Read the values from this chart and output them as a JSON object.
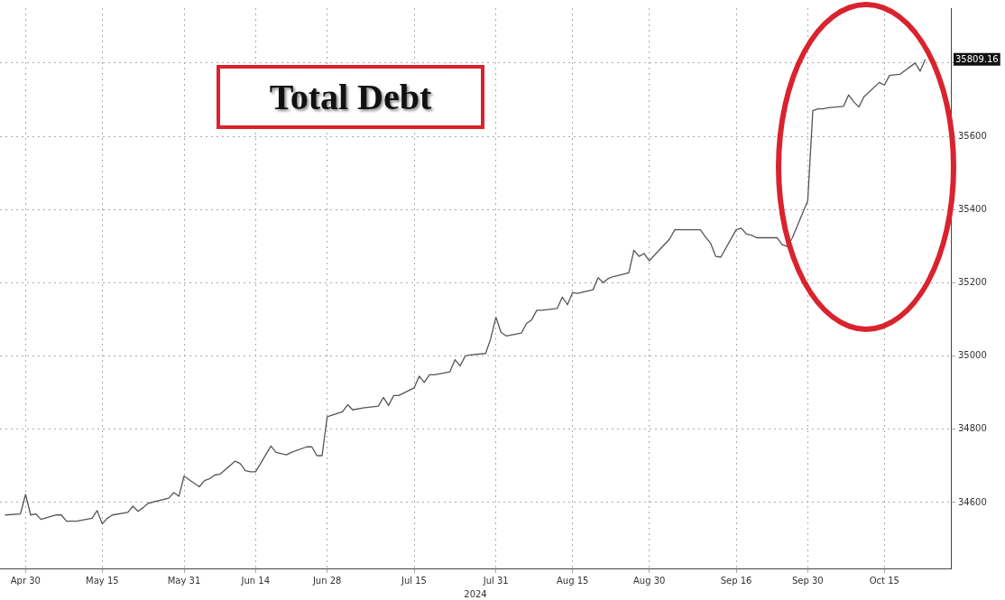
{
  "chart_data": {
    "type": "line",
    "title": "Total Debt",
    "xlabel": "2024",
    "x": [
      "2024-04-26",
      "2024-04-29",
      "2024-04-30",
      "2024-05-01",
      "2024-05-02",
      "2024-05-03",
      "2024-05-06",
      "2024-05-07",
      "2024-05-08",
      "2024-05-09",
      "2024-05-10",
      "2024-05-13",
      "2024-05-14",
      "2024-05-15",
      "2024-05-16",
      "2024-05-17",
      "2024-05-20",
      "2024-05-21",
      "2024-05-22",
      "2024-05-23",
      "2024-05-24",
      "2024-05-28",
      "2024-05-29",
      "2024-05-30",
      "2024-05-31",
      "2024-06-03",
      "2024-06-04",
      "2024-06-05",
      "2024-06-06",
      "2024-06-07",
      "2024-06-10",
      "2024-06-11",
      "2024-06-12",
      "2024-06-13",
      "2024-06-14",
      "2024-06-17",
      "2024-06-18",
      "2024-06-20",
      "2024-06-21",
      "2024-06-24",
      "2024-06-25",
      "2024-06-26",
      "2024-06-27",
      "2024-06-28",
      "2024-07-01",
      "2024-07-02",
      "2024-07-03",
      "2024-07-05",
      "2024-07-08",
      "2024-07-09",
      "2024-07-10",
      "2024-07-11",
      "2024-07-12",
      "2024-07-15",
      "2024-07-16",
      "2024-07-17",
      "2024-07-18",
      "2024-07-19",
      "2024-07-22",
      "2024-07-23",
      "2024-07-24",
      "2024-07-25",
      "2024-07-26",
      "2024-07-29",
      "2024-07-30",
      "2024-07-31",
      "2024-08-01",
      "2024-08-02",
      "2024-08-05",
      "2024-08-06",
      "2024-08-07",
      "2024-08-08",
      "2024-08-09",
      "2024-08-12",
      "2024-08-13",
      "2024-08-14",
      "2024-08-15",
      "2024-08-16",
      "2024-08-19",
      "2024-08-20",
      "2024-08-21",
      "2024-08-22",
      "2024-08-23",
      "2024-08-26",
      "2024-08-27",
      "2024-08-28",
      "2024-08-29",
      "2024-08-30",
      "2024-09-03",
      "2024-09-04",
      "2024-09-05",
      "2024-09-06",
      "2024-09-09",
      "2024-09-10",
      "2024-09-11",
      "2024-09-12",
      "2024-09-13",
      "2024-09-16",
      "2024-09-17",
      "2024-09-18",
      "2024-09-19",
      "2024-09-20",
      "2024-09-23",
      "2024-09-24",
      "2024-09-25",
      "2024-09-26",
      "2024-09-27",
      "2024-09-30",
      "2024-10-01",
      "2024-10-02",
      "2024-10-03",
      "2024-10-04",
      "2024-10-07",
      "2024-10-08",
      "2024-10-09",
      "2024-10-10",
      "2024-10-11",
      "2024-10-14",
      "2024-10-15",
      "2024-10-16",
      "2024-10-17",
      "2024-10-18",
      "2024-10-21",
      "2024-10-22",
      "2024-10-23"
    ],
    "series": [
      {
        "color": "#555555",
        "values": [
          34566,
          34569,
          34622,
          34566,
          34569,
          34554,
          34566,
          34566,
          34549,
          34549,
          34549,
          34557,
          34578,
          34542,
          34557,
          34566,
          34573,
          34590,
          34576,
          34586,
          34598,
          34612,
          34627,
          34617,
          34672,
          34643,
          34660,
          34665,
          34675,
          34677,
          34713,
          34706,
          34687,
          34684,
          34684,
          34754,
          34737,
          34730,
          34737,
          34752,
          34752,
          34728,
          34728,
          34834,
          34848,
          34867,
          34853,
          34858,
          34863,
          34887,
          34865,
          34892,
          34892,
          34913,
          34945,
          34928,
          34949,
          34949,
          34957,
          34990,
          34973,
          35000,
          35003,
          35007,
          35048,
          35106,
          35065,
          35055,
          35063,
          35089,
          35099,
          35125,
          35125,
          35130,
          35161,
          35140,
          35173,
          35171,
          35181,
          35214,
          35200,
          35212,
          35217,
          35227,
          35289,
          35272,
          35280,
          35260,
          35320,
          35345,
          35345,
          35345,
          35345,
          35325,
          35308,
          35272,
          35270,
          35345,
          35349,
          35333,
          35330,
          35323,
          35323,
          35323,
          35304,
          35299,
          35323,
          35424,
          35670,
          35675,
          35675,
          35678,
          35682,
          35713,
          35694,
          35680,
          35708,
          35747,
          35740,
          35766,
          35768,
          35769,
          35800,
          35778,
          35810
        ]
      }
    ],
    "xlim": [
      "2024-04-25",
      "2024-10-28"
    ],
    "xticks": [
      {
        "value": "2024-04-30",
        "label": "Apr 30"
      },
      {
        "value": "2024-05-15",
        "label": "May 15"
      },
      {
        "value": "2024-05-31",
        "label": "May 31"
      },
      {
        "value": "2024-06-14",
        "label": "Jun 14"
      },
      {
        "value": "2024-06-28",
        "label": "Jun 28"
      },
      {
        "value": "2024-07-15",
        "label": "Jul 15"
      },
      {
        "value": "2024-07-31",
        "label": "Jul 31"
      },
      {
        "value": "2024-08-15",
        "label": "Aug 15"
      },
      {
        "value": "2024-08-30",
        "label": "Aug 30"
      },
      {
        "value": "2024-09-16",
        "label": "Sep 16"
      },
      {
        "value": "2024-09-30",
        "label": "Sep 30"
      },
      {
        "value": "2024-10-15",
        "label": "Oct 15"
      }
    ],
    "ylim": [
      34420,
      35950
    ],
    "yticks": [
      34600,
      34800,
      35000,
      35200,
      35400,
      35600,
      {
        "value": 35800,
        "label": null
      }
    ],
    "annotations": [
      "35809.16"
    ],
    "grid": true,
    "legend": false
  }
}
